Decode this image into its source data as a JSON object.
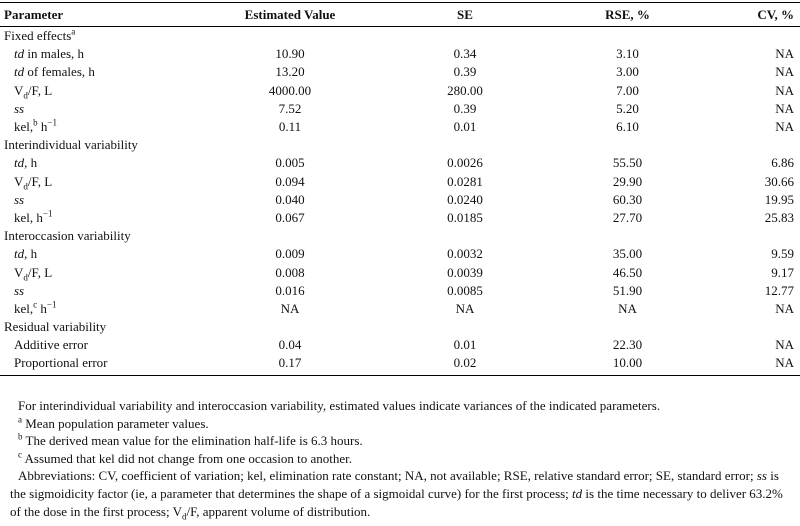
{
  "table": {
    "header": [
      "Parameter",
      "Estimated Value",
      "SE",
      "RSE, %",
      "CV, %"
    ],
    "sections": [
      {
        "title": [
          "Fixed effects",
          {
            "text": "a",
            "style": "sup"
          }
        ],
        "rows": [
          {
            "label": [
              {
                "text": "td",
                "style": "italic"
              },
              " in males, h"
            ],
            "cells": [
              "10.90",
              "0.34",
              "3.10",
              "NA"
            ]
          },
          {
            "label": [
              {
                "text": "td",
                "style": "italic"
              },
              " of females, h"
            ],
            "cells": [
              "13.20",
              "0.39",
              "3.00",
              "NA"
            ]
          },
          {
            "label": [
              "V",
              {
                "text": "d",
                "style": "sub"
              },
              "/F, L"
            ],
            "cells": [
              "4000.00",
              "280.00",
              "7.00",
              "NA"
            ]
          },
          {
            "label": [
              {
                "text": "ss",
                "style": "italic"
              }
            ],
            "cells": [
              "7.52",
              "0.39",
              "5.20",
              "NA"
            ]
          },
          {
            "label": [
              "kel,",
              {
                "text": "b",
                "style": "sup"
              },
              " h",
              {
                "text": "−1",
                "style": "sup"
              }
            ],
            "cells": [
              "0.11",
              "0.01",
              "6.10",
              "NA"
            ]
          }
        ]
      },
      {
        "title": [
          "Interindividual variability"
        ],
        "rows": [
          {
            "label": [
              {
                "text": "td",
                "style": "italic"
              },
              ", h"
            ],
            "cells": [
              "0.005",
              "0.0026",
              "55.50",
              "6.86"
            ]
          },
          {
            "label": [
              "V",
              {
                "text": "d",
                "style": "sub"
              },
              "/F, L"
            ],
            "cells": [
              "0.094",
              "0.0281",
              "29.90",
              "30.66"
            ]
          },
          {
            "label": [
              {
                "text": "ss",
                "style": "italic"
              }
            ],
            "cells": [
              "0.040",
              "0.0240",
              "60.30",
              "19.95"
            ]
          },
          {
            "label": [
              "kel, h",
              {
                "text": "−1",
                "style": "sup"
              }
            ],
            "cells": [
              "0.067",
              "0.0185",
              "27.70",
              "25.83"
            ]
          }
        ]
      },
      {
        "title": [
          "Interoccasion variability"
        ],
        "rows": [
          {
            "label": [
              {
                "text": "td",
                "style": "italic"
              },
              ", h"
            ],
            "cells": [
              "0.009",
              "0.0032",
              "35.00",
              "9.59"
            ]
          },
          {
            "label": [
              "V",
              {
                "text": "d",
                "style": "sub"
              },
              "/F, L"
            ],
            "cells": [
              "0.008",
              "0.0039",
              "46.50",
              "9.17"
            ]
          },
          {
            "label": [
              {
                "text": "ss",
                "style": "italic"
              }
            ],
            "cells": [
              "0.016",
              "0.0085",
              "51.90",
              "12.77"
            ]
          },
          {
            "label": [
              "kel,",
              {
                "text": "c",
                "style": "sup"
              },
              " h",
              {
                "text": "−1",
                "style": "sup"
              }
            ],
            "cells": [
              "NA",
              "NA",
              "NA",
              "NA"
            ]
          }
        ]
      },
      {
        "title": [
          "Residual variability"
        ],
        "rows": [
          {
            "label": [
              "Additive error"
            ],
            "cells": [
              "0.04",
              "0.01",
              "22.30",
              "NA"
            ]
          },
          {
            "label": [
              "Proportional error"
            ],
            "cells": [
              "0.17",
              "0.02",
              "10.00",
              "NA"
            ]
          }
        ]
      }
    ]
  },
  "notes": [
    [
      "For interindividual variability and interoccasion variability, estimated values indicate variances of the indicated parameters."
    ],
    [
      {
        "text": "a",
        "style": "sup"
      },
      " Mean population parameter values."
    ],
    [
      {
        "text": "b",
        "style": "sup"
      },
      " The derived mean value for the elimination half-life is 6.3 hours."
    ],
    [
      {
        "text": "c",
        "style": "sup"
      },
      " Assumed that kel did not change from one occasion to another."
    ],
    [
      "Abbreviations: CV, coefficient of variation; kel, elimination rate constant; NA, not available; RSE, relative standard error; SE, standard error; ",
      {
        "text": "ss",
        "style": "italic"
      },
      " is the sigmoidicity factor (ie, a parameter that determines the shape of a sigmoidal curve) for the first process; ",
      {
        "text": "td",
        "style": "italic"
      },
      " is the time necessary to deliver 63.2% of the dose in the first process; V",
      {
        "text": "d",
        "style": "sub"
      },
      "/F, apparent volume of distribution."
    ]
  ]
}
